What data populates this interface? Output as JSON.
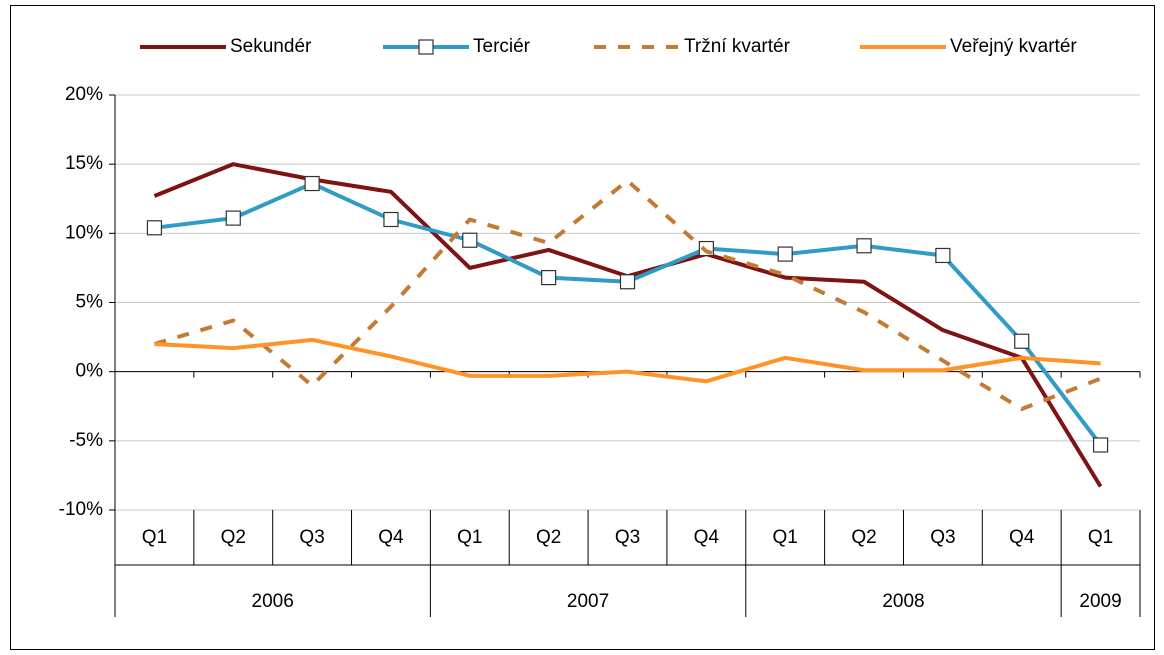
{
  "chart_data": {
    "type": "line",
    "categories": [
      "Q1",
      "Q2",
      "Q3",
      "Q4",
      "Q1",
      "Q2",
      "Q3",
      "Q4",
      "Q1",
      "Q2",
      "Q3",
      "Q4",
      "Q1"
    ],
    "category_groups": [
      "2006",
      "2007",
      "2008",
      "2009"
    ],
    "category_group_sizes": [
      4,
      4,
      4,
      1
    ],
    "series": [
      {
        "name": "Sekundér",
        "color": "#7f1212",
        "values": [
          12.7,
          15.0,
          13.9,
          13.0,
          7.5,
          8.8,
          6.9,
          8.5,
          6.8,
          6.5,
          3.0,
          1.0,
          -8.3
        ]
      },
      {
        "name": "Terciér",
        "color": "#2f9bc6",
        "marker": "square",
        "values": [
          10.4,
          11.1,
          13.6,
          11.0,
          9.5,
          6.8,
          6.5,
          8.9,
          8.5,
          9.1,
          8.4,
          2.2,
          -5.3
        ]
      },
      {
        "name": "Tržní kvartér",
        "color": "#c47a33",
        "dashed": true,
        "values": [
          2.0,
          3.7,
          -1.0,
          4.7,
          11.0,
          9.3,
          13.8,
          8.7,
          7.0,
          4.3,
          0.8,
          -2.7,
          -0.5
        ]
      },
      {
        "name": "Veřejný kvartér",
        "color": "#ff9326",
        "values": [
          2.0,
          1.7,
          2.3,
          1.1,
          -0.3,
          -0.3,
          0.0,
          -0.7,
          1.0,
          0.1,
          0.1,
          1.0,
          0.6
        ]
      }
    ],
    "ylim": [
      -10,
      20
    ],
    "yticks": [
      {
        "value": -10,
        "label": "-10%"
      },
      {
        "value": -5,
        "label": "-5%"
      },
      {
        "value": 0,
        "label": "0%"
      },
      {
        "value": 5,
        "label": "5%"
      },
      {
        "value": 10,
        "label": "10%"
      },
      {
        "value": 15,
        "label": "15%"
      },
      {
        "value": 20,
        "label": "20%"
      }
    ],
    "grid": true,
    "legend": "top"
  }
}
